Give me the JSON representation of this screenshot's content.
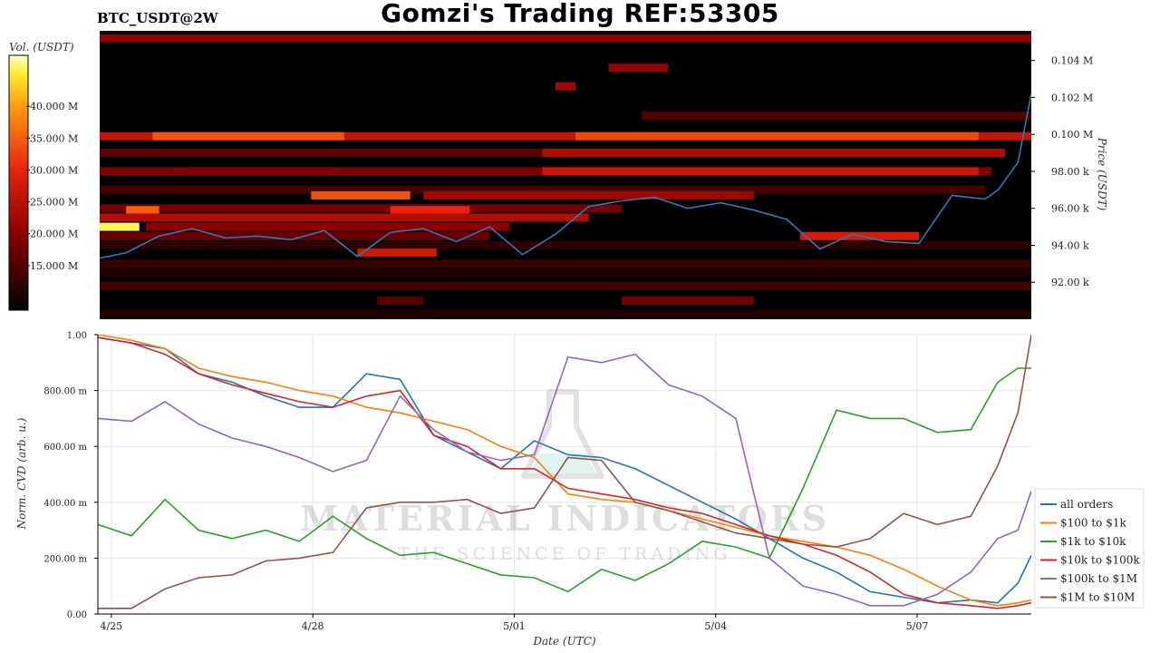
{
  "header": {
    "title": "Gomzi's Trading REF:53305",
    "symbol": "BTC_USDT@2W"
  },
  "colorbar": {
    "label": "Vol. (USDT)",
    "ticks": [
      "40.000 M",
      "35.000 M",
      "30.000 M",
      "25.000 M",
      "20.000 M",
      "15.000 M"
    ],
    "tick_values": [
      40,
      35,
      30,
      25,
      20,
      15
    ],
    "range": [
      8,
      48
    ]
  },
  "watermark": {
    "line1": "MATERIAL INDICATORS",
    "line2": "THE SCIENCE OF TRADING"
  },
  "colors": {
    "price_line": "#2a7ab8",
    "heat_low": "#000000",
    "heat_high": "#ffffff"
  },
  "chart_data": [
    {
      "type": "heatmap",
      "ylabel": "Price (USDT)",
      "ylim": [
        90000,
        105600
      ],
      "y_ticks": [
        "0.104 M",
        "0.102 M",
        "0.100 M",
        "98.00 k",
        "96.00 k",
        "94.00 k",
        "92.00 k"
      ],
      "y_tick_values": [
        104000,
        102000,
        100000,
        98000,
        96000,
        94000,
        92000
      ],
      "x_range_days": [
        -0.4,
        13.7
      ],
      "price_series": {
        "name": "",
        "x": [
          -0.4,
          0,
          0.5,
          1,
          1.5,
          2,
          2.5,
          3,
          3.5,
          4,
          4.5,
          5,
          5.5,
          6,
          6.5,
          7,
          7.5,
          8,
          8.5,
          9,
          9.5,
          10,
          10.5,
          11,
          11.5,
          12,
          12.5,
          13,
          13.2,
          13.5,
          13.7
        ],
        "y": [
          93300,
          93600,
          94500,
          94900,
          94400,
          94500,
          94300,
          94800,
          93400,
          94700,
          94900,
          94200,
          95000,
          93500,
          94600,
          96100,
          96400,
          96600,
          96000,
          96300,
          95900,
          95400,
          93800,
          94600,
          94200,
          94100,
          96700,
          96500,
          97000,
          98500,
          102200
        ]
      },
      "levels": [
        {
          "price": 105200,
          "x0": -0.4,
          "x1": 13.7,
          "v": 20
        },
        {
          "price": 103600,
          "x0": 7.3,
          "x1": 8.2,
          "v": 21
        },
        {
          "price": 102600,
          "x0": 6.5,
          "x1": 6.8,
          "v": 22
        },
        {
          "price": 101000,
          "x0": 7.8,
          "x1": 13.7,
          "v": 15
        },
        {
          "price": 99900,
          "x0": -0.4,
          "x1": 13.7,
          "v": 26
        },
        {
          "price": 99900,
          "x0": 0.4,
          "x1": 3.3,
          "v": 34
        },
        {
          "price": 99900,
          "x0": 6.8,
          "x1": 12.9,
          "v": 33
        },
        {
          "price": 99000,
          "x0": -0.4,
          "x1": 13.3,
          "v": 16
        },
        {
          "price": 99000,
          "x0": 6.3,
          "x1": 13.3,
          "v": 24
        },
        {
          "price": 98000,
          "x0": 0.8,
          "x1": 3.2,
          "v": 33
        },
        {
          "price": 98000,
          "x0": -0.4,
          "x1": 13.1,
          "v": 19
        },
        {
          "price": 98000,
          "x0": 6.3,
          "x1": 12.9,
          "v": 27
        },
        {
          "price": 97000,
          "x0": -0.4,
          "x1": 13.0,
          "v": 14
        },
        {
          "price": 96700,
          "x0": 2.8,
          "x1": 4.3,
          "v": 34
        },
        {
          "price": 96700,
          "x0": 4.5,
          "x1": 9.5,
          "v": 22
        },
        {
          "price": 96000,
          "x0": -0.4,
          "x1": 7.5,
          "v": 18
        },
        {
          "price": 95900,
          "x0": 0.0,
          "x1": 0.5,
          "v": 35
        },
        {
          "price": 95900,
          "x0": 4.0,
          "x1": 5.2,
          "v": 30
        },
        {
          "price": 95500,
          "x0": -0.4,
          "x1": 7.0,
          "v": 24
        },
        {
          "price": 95000,
          "x0": -0.4,
          "x1": 0.2,
          "v": 46
        },
        {
          "price": 95000,
          "x0": 0.3,
          "x1": 5.8,
          "v": 20
        },
        {
          "price": 94500,
          "x0": -0.4,
          "x1": 5.5,
          "v": 17
        },
        {
          "price": 94500,
          "x0": 10.2,
          "x1": 12.0,
          "v": 28
        },
        {
          "price": 94000,
          "x0": -0.4,
          "x1": 13.7,
          "v": 12
        },
        {
          "price": 93600,
          "x0": 3.5,
          "x1": 4.7,
          "v": 27
        },
        {
          "price": 93000,
          "x0": -0.4,
          "x1": 13.7,
          "v": 13
        },
        {
          "price": 92500,
          "x0": -0.4,
          "x1": 13.7,
          "v": 11
        },
        {
          "price": 91800,
          "x0": -0.4,
          "x1": 13.7,
          "v": 14
        },
        {
          "price": 91000,
          "x0": 7.5,
          "x1": 9.5,
          "v": 18
        },
        {
          "price": 91000,
          "x0": 3.8,
          "x1": 4.5,
          "v": 16
        },
        {
          "price": 90300,
          "x0": -0.4,
          "x1": 13.7,
          "v": 11
        }
      ]
    },
    {
      "type": "line",
      "xlabel": "Date (UTC)",
      "ylabel": "Norm. CVD (arb. u.)",
      "ylim": [
        0,
        1
      ],
      "xlim": [
        -0.2,
        13.7
      ],
      "x_ticks": [
        "4/25",
        "4/28",
        "5/01",
        "5/04",
        "5/07"
      ],
      "x_tick_values": [
        0,
        3,
        6,
        9,
        12
      ],
      "y_ticks": [
        "0.00",
        "200.00 m",
        "400.00 m",
        "600.00 m",
        "800.00 m",
        "1.00"
      ],
      "y_tick_values": [
        0,
        0.2,
        0.4,
        0.6,
        0.8,
        1.0
      ],
      "x": [
        -0.2,
        0.3,
        0.8,
        1.3,
        1.8,
        2.3,
        2.8,
        3.3,
        3.8,
        4.3,
        4.8,
        5.3,
        5.8,
        6.3,
        6.8,
        7.3,
        7.8,
        8.3,
        8.8,
        9.3,
        9.8,
        10.3,
        10.8,
        11.3,
        11.8,
        12.3,
        12.8,
        13.2,
        13.5,
        13.7
      ],
      "series": [
        {
          "name": "all orders",
          "color": "#1f77b4",
          "values": [
            0.99,
            0.97,
            0.95,
            0.86,
            0.83,
            0.78,
            0.74,
            0.74,
            0.86,
            0.84,
            0.64,
            0.58,
            0.52,
            0.62,
            0.57,
            0.56,
            0.52,
            0.46,
            0.4,
            0.34,
            0.27,
            0.2,
            0.15,
            0.08,
            0.06,
            0.04,
            0.05,
            0.04,
            0.11,
            0.21
          ]
        },
        {
          "name": "$100 to $1k",
          "color": "#ff7f0e",
          "values": [
            1.0,
            0.98,
            0.95,
            0.88,
            0.85,
            0.83,
            0.8,
            0.78,
            0.74,
            0.72,
            0.69,
            0.66,
            0.6,
            0.56,
            0.43,
            0.41,
            0.4,
            0.37,
            0.34,
            0.31,
            0.28,
            0.26,
            0.24,
            0.21,
            0.16,
            0.1,
            0.05,
            0.03,
            0.04,
            0.05
          ]
        },
        {
          "name": "$1k to $10k",
          "color": "#2ca02c",
          "values": [
            0.32,
            0.28,
            0.41,
            0.3,
            0.27,
            0.3,
            0.26,
            0.35,
            0.27,
            0.21,
            0.22,
            0.18,
            0.14,
            0.13,
            0.08,
            0.16,
            0.12,
            0.18,
            0.26,
            0.24,
            0.2,
            0.45,
            0.73,
            0.7,
            0.7,
            0.65,
            0.66,
            0.83,
            0.88,
            0.88
          ]
        },
        {
          "name": "$10k to $100k",
          "color": "#d62728",
          "values": [
            0.99,
            0.97,
            0.93,
            0.86,
            0.82,
            0.79,
            0.76,
            0.74,
            0.78,
            0.8,
            0.64,
            0.6,
            0.52,
            0.52,
            0.45,
            0.43,
            0.41,
            0.38,
            0.36,
            0.32,
            0.28,
            0.25,
            0.21,
            0.15,
            0.07,
            0.04,
            0.03,
            0.02,
            0.03,
            0.04
          ]
        },
        {
          "name": "$100k to $1M",
          "color": "#9467bd",
          "values": [
            0.7,
            0.69,
            0.76,
            0.68,
            0.63,
            0.6,
            0.56,
            0.51,
            0.55,
            0.78,
            0.66,
            0.58,
            0.55,
            0.57,
            0.92,
            0.9,
            0.93,
            0.82,
            0.78,
            0.7,
            0.2,
            0.1,
            0.07,
            0.03,
            0.03,
            0.07,
            0.15,
            0.27,
            0.3,
            0.44
          ]
        },
        {
          "name": "$1M to $10M",
          "color": "#8c564b",
          "values": [
            0.02,
            0.02,
            0.09,
            0.13,
            0.14,
            0.19,
            0.2,
            0.22,
            0.38,
            0.4,
            0.4,
            0.41,
            0.36,
            0.38,
            0.56,
            0.55,
            0.4,
            0.37,
            0.33,
            0.29,
            0.27,
            0.25,
            0.24,
            0.27,
            0.36,
            0.32,
            0.35,
            0.53,
            0.72,
            1.0
          ]
        }
      ]
    }
  ]
}
